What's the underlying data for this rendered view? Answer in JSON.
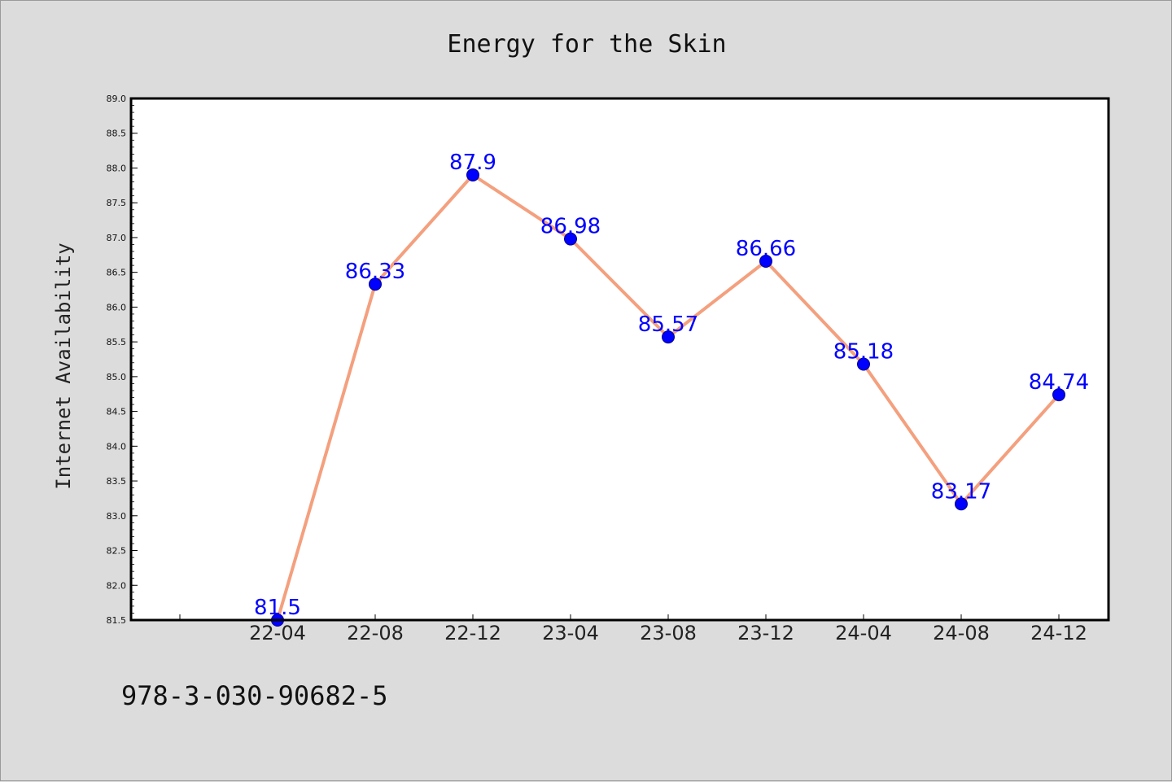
{
  "chart_data": {
    "type": "line",
    "title": "Energy for the Skin",
    "xlabel": "",
    "ylabel": "Internet Availability",
    "categories": [
      "22-04",
      "22-08",
      "22-12",
      "23-04",
      "23-08",
      "23-12",
      "24-04",
      "24-08",
      "24-12"
    ],
    "values": [
      81.5,
      86.33,
      87.9,
      86.98,
      85.57,
      86.66,
      85.18,
      83.17,
      84.74
    ],
    "value_labels": [
      "81.5",
      "86.33",
      "87.9",
      "86.98",
      "85.57",
      "86.66",
      "85.18",
      "83.17",
      "84.74"
    ],
    "ylim": [
      81.5,
      89.0
    ],
    "yticks": [
      "81.5",
      "82.0",
      "82.5",
      "83.0",
      "83.5",
      "84.0",
      "84.5",
      "85.0",
      "85.5",
      "86.0",
      "86.5",
      "87.0",
      "87.5",
      "88.0",
      "88.5",
      "89.0"
    ],
    "grid": false,
    "legend": "none",
    "colors": {
      "line": "#f4a07e",
      "marker": "#0000ff",
      "marker_edge": "#00008b",
      "data_label": "#0000ff",
      "plot_background": "#ffffff",
      "figure_background": "#dcdcdc"
    }
  },
  "footer": {
    "text": "978-3-030-90682-5"
  }
}
